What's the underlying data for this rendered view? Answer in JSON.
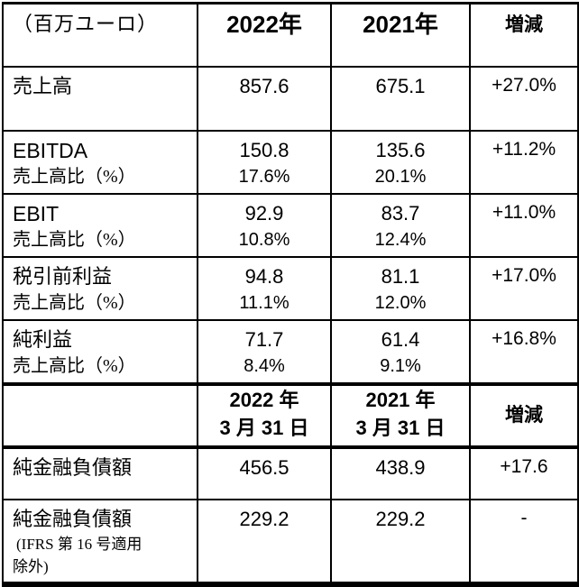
{
  "unit_label": "（百万ユーロ）",
  "header1": {
    "y2022": "2022年",
    "y2021": "2021年",
    "change": "増減"
  },
  "pl_rows": [
    {
      "label": "売上高",
      "sublabel": "",
      "v2022": "857.6",
      "p2022": "",
      "v2021": "675.1",
      "p2021": "",
      "change": "+27.0%"
    },
    {
      "label": "EBITDA",
      "sublabel": "売上高比（%）",
      "v2022": "150.8",
      "p2022": "17.6%",
      "v2021": "135.6",
      "p2021": "20.1%",
      "change": "+11.2%"
    },
    {
      "label": "EBIT",
      "sublabel": "売上高比（%）",
      "v2022": "92.9",
      "p2022": "10.8%",
      "v2021": "83.7",
      "p2021": "12.4%",
      "change": "+11.0%"
    },
    {
      "label": "税引前利益",
      "sublabel": "売上高比（%）",
      "v2022": "94.8",
      "p2022": "11.1%",
      "v2021": "81.1",
      "p2021": "12.0%",
      "change": "+17.0%"
    },
    {
      "label": "純利益",
      "sublabel": "売上高比（%）",
      "v2022": "71.7",
      "p2022": "8.4%",
      "v2021": "61.4",
      "p2021": "9.1%",
      "change": "+16.8%"
    }
  ],
  "header2": {
    "y2022_line1": "2022 年",
    "y2022_line2": "3 月 31 日",
    "y2021_line1": "2021 年",
    "y2021_line2": "3 月 31 日",
    "change": "増減"
  },
  "bs_rows": [
    {
      "label": "純金融負債額",
      "note1": "",
      "note2": "",
      "v2022": "456.5",
      "v2021": "438.9",
      "change": "+17.6"
    },
    {
      "label": "純金融負債額",
      "note1": "(IFRS 第 16 号適用",
      "note2": "除外)",
      "v2022": "229.2",
      "v2021": "229.2",
      "change": "-"
    }
  ]
}
